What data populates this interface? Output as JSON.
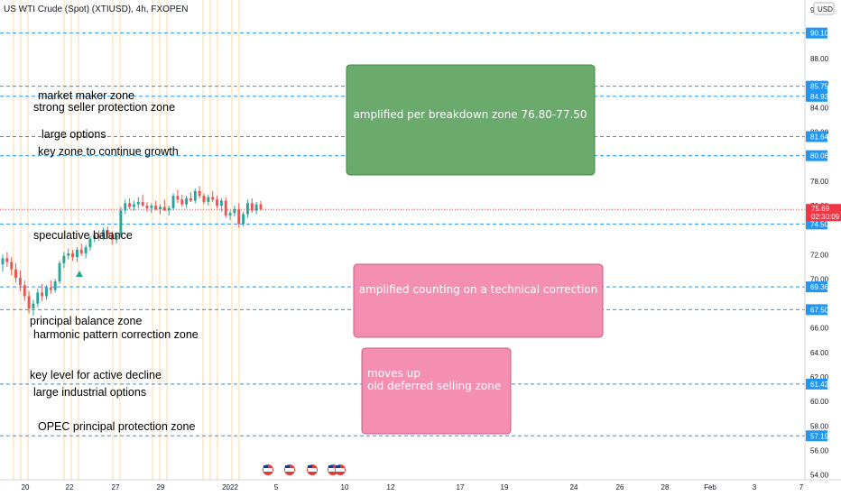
{
  "header": {
    "symbol_title": "US WTI Crude (Spot) (XTIUSD), 4h, FXOPEN"
  },
  "currency_badge": "USD",
  "chart_data": {
    "type": "candlestick",
    "title": "US WTI Crude (Spot) (XTIUSD), 4h, FXOPEN",
    "ylim": [
      53.6,
      92.8
    ],
    "y_ticks": [
      "92.00",
      "88.00",
      "86.00",
      "84.00",
      "82.00",
      "78.00",
      "76.00",
      "72.00",
      "70.00",
      "66.00",
      "64.00",
      "62.00",
      "60.00",
      "58.00",
      "56.00",
      "54.00"
    ],
    "x_ticks": [
      "20",
      "22",
      "27",
      "29",
      "2022",
      "5",
      "10",
      "12",
      "17",
      "19",
      "24",
      "26",
      "28",
      "Feb",
      "3",
      "7"
    ],
    "last_price": "75.69",
    "countdown": "02:30:09",
    "levels": [
      "90.10",
      "85.75",
      "84.93",
      "81.64",
      "80.08",
      "74.50",
      "69.36",
      "67.50",
      "61.42",
      "57.19"
    ],
    "annotations": [
      "market maker zone",
      "strong seller protection zone",
      "large options",
      "key zone to continue growth",
      "speculative balance",
      "principal balance zone",
      "harmonic pattern correction zone",
      "key level for active decline",
      "large industrial options",
      "OPEC principal protection zone"
    ],
    "boxes": [
      {
        "text": "amplified per breakdown zone 76.80-77.50",
        "color": "#6aaa6c",
        "border": "#3f8a43"
      },
      {
        "text": "amplified counting on a technical correction",
        "color": "#f48fb1",
        "border": "#c75b87"
      },
      {
        "text": "moves up",
        "text2": "old deferred selling  zone",
        "color": "#f48fb1",
        "border": "#c75b87"
      }
    ],
    "candles": [
      {
        "o": 71.2,
        "h": 72.0,
        "l": 70.6,
        "c": 71.7
      },
      {
        "o": 71.7,
        "h": 72.2,
        "l": 71.0,
        "c": 71.4
      },
      {
        "o": 71.4,
        "h": 71.8,
        "l": 70.3,
        "c": 70.8
      },
      {
        "o": 70.8,
        "h": 71.3,
        "l": 69.7,
        "c": 70.1
      },
      {
        "o": 70.1,
        "h": 70.7,
        "l": 69.0,
        "c": 69.5
      },
      {
        "o": 69.5,
        "h": 69.9,
        "l": 68.2,
        "c": 68.6
      },
      {
        "o": 68.6,
        "h": 69.0,
        "l": 67.2,
        "c": 67.6
      },
      {
        "o": 67.6,
        "h": 68.3,
        "l": 67.0,
        "c": 68.0
      },
      {
        "o": 68.0,
        "h": 69.2,
        "l": 67.7,
        "c": 68.9
      },
      {
        "o": 68.9,
        "h": 69.6,
        "l": 68.2,
        "c": 68.6
      },
      {
        "o": 68.6,
        "h": 69.5,
        "l": 68.3,
        "c": 69.3
      },
      {
        "o": 69.3,
        "h": 69.9,
        "l": 68.8,
        "c": 69.1
      },
      {
        "o": 69.1,
        "h": 70.0,
        "l": 68.9,
        "c": 69.8
      },
      {
        "o": 69.8,
        "h": 71.5,
        "l": 69.6,
        "c": 71.3
      },
      {
        "o": 71.3,
        "h": 72.2,
        "l": 70.9,
        "c": 71.9
      },
      {
        "o": 71.9,
        "h": 72.5,
        "l": 71.6,
        "c": 72.1
      },
      {
        "o": 72.1,
        "h": 72.4,
        "l": 71.5,
        "c": 71.8
      },
      {
        "o": 71.8,
        "h": 72.6,
        "l": 71.4,
        "c": 72.4
      },
      {
        "o": 72.4,
        "h": 72.9,
        "l": 71.9,
        "c": 72.1
      },
      {
        "o": 72.1,
        "h": 72.8,
        "l": 71.7,
        "c": 72.6
      },
      {
        "o": 72.6,
        "h": 73.5,
        "l": 72.3,
        "c": 73.3
      },
      {
        "o": 73.3,
        "h": 73.9,
        "l": 73.0,
        "c": 73.6
      },
      {
        "o": 73.6,
        "h": 74.0,
        "l": 73.1,
        "c": 73.4
      },
      {
        "o": 73.4,
        "h": 74.2,
        "l": 73.2,
        "c": 74.0
      },
      {
        "o": 74.0,
        "h": 74.3,
        "l": 73.3,
        "c": 73.6
      },
      {
        "o": 73.6,
        "h": 73.9,
        "l": 72.8,
        "c": 73.2
      },
      {
        "o": 73.2,
        "h": 73.8,
        "l": 72.9,
        "c": 73.6
      },
      {
        "o": 73.6,
        "h": 75.9,
        "l": 73.4,
        "c": 75.6
      },
      {
        "o": 75.6,
        "h": 76.5,
        "l": 75.3,
        "c": 76.2
      },
      {
        "o": 76.2,
        "h": 76.6,
        "l": 75.7,
        "c": 75.9
      },
      {
        "o": 75.9,
        "h": 76.4,
        "l": 75.6,
        "c": 76.1
      },
      {
        "o": 76.1,
        "h": 76.7,
        "l": 75.8,
        "c": 76.3
      },
      {
        "o": 76.3,
        "h": 76.9,
        "l": 75.9,
        "c": 76.0
      },
      {
        "o": 76.0,
        "h": 76.3,
        "l": 75.5,
        "c": 75.8
      },
      {
        "o": 75.8,
        "h": 76.2,
        "l": 75.4,
        "c": 76.0
      },
      {
        "o": 76.0,
        "h": 76.4,
        "l": 75.6,
        "c": 75.7
      },
      {
        "o": 75.7,
        "h": 76.1,
        "l": 75.3,
        "c": 75.9
      },
      {
        "o": 75.9,
        "h": 76.5,
        "l": 75.6,
        "c": 75.6
      },
      {
        "o": 75.6,
        "h": 76.0,
        "l": 75.2,
        "c": 75.8
      },
      {
        "o": 75.8,
        "h": 77.0,
        "l": 75.6,
        "c": 76.8
      },
      {
        "o": 76.8,
        "h": 77.3,
        "l": 76.2,
        "c": 76.5
      },
      {
        "o": 76.5,
        "h": 76.9,
        "l": 75.9,
        "c": 76.1
      },
      {
        "o": 76.1,
        "h": 76.8,
        "l": 75.8,
        "c": 76.6
      },
      {
        "o": 76.6,
        "h": 77.1,
        "l": 76.3,
        "c": 76.4
      },
      {
        "o": 76.4,
        "h": 77.4,
        "l": 76.2,
        "c": 77.2
      },
      {
        "o": 77.2,
        "h": 77.6,
        "l": 76.6,
        "c": 76.8
      },
      {
        "o": 76.8,
        "h": 77.0,
        "l": 76.1,
        "c": 76.3
      },
      {
        "o": 76.3,
        "h": 76.9,
        "l": 76.0,
        "c": 76.7
      },
      {
        "o": 76.7,
        "h": 77.2,
        "l": 76.3,
        "c": 76.5
      },
      {
        "o": 76.5,
        "h": 76.8,
        "l": 75.8,
        "c": 76.0
      },
      {
        "o": 76.0,
        "h": 76.6,
        "l": 75.5,
        "c": 76.4
      },
      {
        "o": 76.4,
        "h": 76.7,
        "l": 75.0,
        "c": 75.2
      },
      {
        "o": 75.2,
        "h": 75.6,
        "l": 74.8,
        "c": 75.4
      },
      {
        "o": 75.4,
        "h": 76.0,
        "l": 75.1,
        "c": 75.7
      },
      {
        "o": 75.7,
        "h": 76.2,
        "l": 74.2,
        "c": 74.5
      },
      {
        "o": 74.5,
        "h": 75.5,
        "l": 74.3,
        "c": 75.3
      },
      {
        "o": 75.3,
        "h": 76.5,
        "l": 75.0,
        "c": 76.2
      },
      {
        "o": 76.2,
        "h": 76.6,
        "l": 75.4,
        "c": 75.6
      },
      {
        "o": 75.6,
        "h": 76.3,
        "l": 75.3,
        "c": 76.1
      },
      {
        "o": 76.1,
        "h": 76.4,
        "l": 75.6,
        "c": 75.69
      }
    ]
  }
}
